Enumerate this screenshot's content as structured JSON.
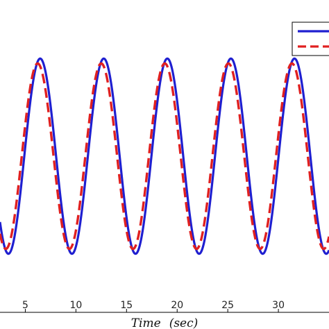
{
  "chart_data": {
    "type": "line",
    "title": "",
    "xlabel": "Time",
    "xlabel_unit": "(sec)",
    "ylabel": "",
    "xlim": [
      2.5,
      35
    ],
    "ylim": [
      -1.6,
      1.6
    ],
    "x_ticks": [
      5,
      10,
      15,
      20,
      25,
      30
    ],
    "x_tick_labels": [
      "5",
      "10",
      "15",
      "20",
      "25",
      "30"
    ],
    "grid": false,
    "legend": {
      "position": "top-right",
      "entries": [
        "",
        ""
      ]
    },
    "series": [
      {
        "color": "#1f1fd0",
        "style": "solid",
        "amplitude_max": 1.0,
        "amplitude_min": -1.0,
        "period": 6.28,
        "phase_shift": 0.0,
        "peaks_x": [
          6.47,
          12.75,
          19.03,
          25.31,
          31.59
        ]
      },
      {
        "color": "#e02020",
        "style": "dashed",
        "amplitude_max": 0.95,
        "amplitude_min": -0.95,
        "period": 6.28,
        "phase_shift": -0.25,
        "peaks_x": [
          6.22,
          12.5,
          18.78,
          25.06,
          31.34
        ]
      }
    ]
  }
}
